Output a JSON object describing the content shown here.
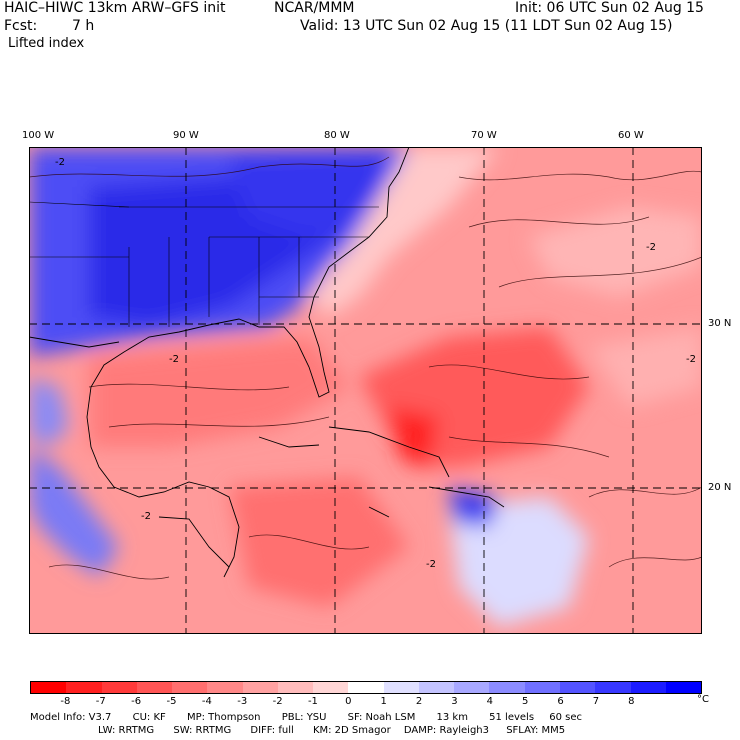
{
  "header": {
    "model": "HAIC–HIWC 13km ARW–GFS init",
    "center": "NCAR/MMM",
    "init": "Init: 06 UTC Sun 02 Aug 15",
    "fcst_label": "Fcst:",
    "fcst_value": "7 h",
    "valid": "Valid: 13 UTC Sun 02 Aug 15 (11 LDT Sun 02 Aug 15)",
    "field": "Lifted index"
  },
  "lon_labels": [
    "100 W",
    "90 W",
    "80 W",
    "70 W",
    "60 W"
  ],
  "lat_labels": [
    "30 N",
    "20 N"
  ],
  "contour_labels": [
    "-2"
  ],
  "colorbar": {
    "ticks": [
      "-8",
      "-7",
      "-6",
      "-5",
      "-4",
      "-3",
      "-2",
      "-1",
      "0",
      "1",
      "2",
      "3",
      "4",
      "5",
      "6",
      "7",
      "8"
    ],
    "unit": "°C",
    "colors": [
      "#ff0000",
      "#ff2020",
      "#ff3a3a",
      "#ff5555",
      "#ff6f6f",
      "#ff8888",
      "#ffa2a2",
      "#ffbcbc",
      "#ffd6d6",
      "#ffffff",
      "#e0e0ff",
      "#c4c4ff",
      "#a8a8ff",
      "#8c8cff",
      "#7070ff",
      "#5454ff",
      "#3838ff",
      "#1c1cff",
      "#0000ff"
    ]
  },
  "footer": {
    "line1": [
      "Model Info: V3.7",
      "CU: KF",
      "MP: Thompson",
      "PBL: YSU",
      "SF: Noah LSM",
      "13 km",
      "51 levels",
      "60 sec"
    ],
    "line2": [
      "LW: RRTMG",
      "SW: RRTMG",
      "DIFF: full",
      "KM: 2D Smagor",
      "DAMP: Rayleigh3",
      "SFLAY: MM5"
    ]
  }
}
